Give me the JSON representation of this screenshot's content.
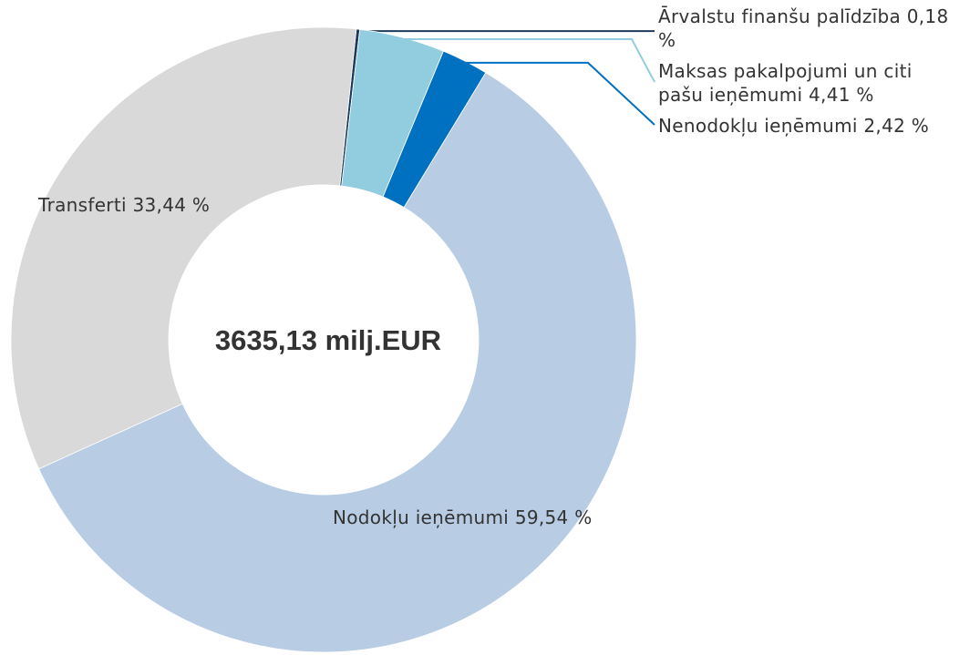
{
  "chart_data": {
    "type": "donut",
    "center_label": "3635,13 milj.EUR",
    "categories": [
      "Ārvalstu finanšu palīdzība",
      "Maksas pakalpojumi un citi pašu ieņēmumi",
      "Nenodokļu ieņēmumi",
      "Nodokļu ieņēmumi",
      "Transferti"
    ],
    "values": [
      0.18,
      4.41,
      2.42,
      59.54,
      33.44
    ],
    "value_labels": [
      "0,18 %",
      "4,41 %",
      "2,42 %",
      "59,54 %",
      "33,44 %"
    ],
    "colors": [
      "#1f3a5a",
      "#92cddf",
      "#0070c0",
      "#b8cce4",
      "#d9d9d9"
    ]
  }
}
